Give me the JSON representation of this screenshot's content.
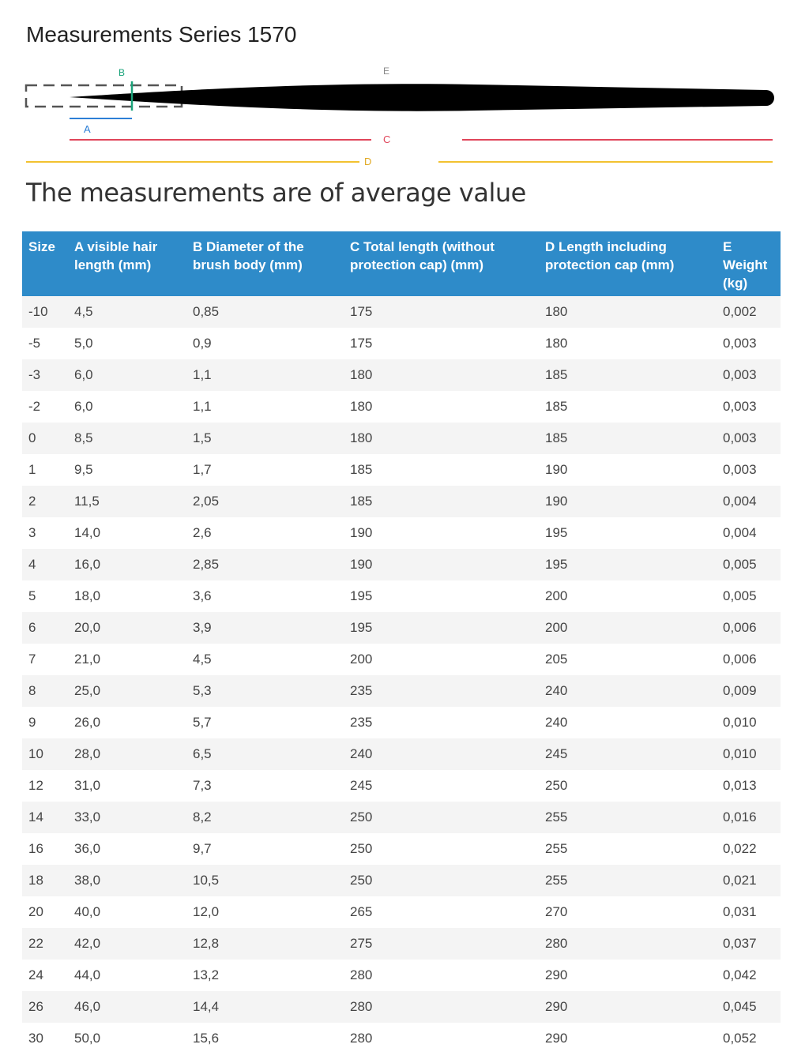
{
  "title": "Measurements Series 1570",
  "diagram": {
    "labels": [
      "A",
      "B",
      "C",
      "D",
      "E"
    ]
  },
  "subtitle": "The measurements are of average value",
  "table": {
    "headers": [
      "Size",
      "A visible hair length (mm)",
      "B Diameter of the brush body (mm)",
      "C Total length (without protection cap) (mm)",
      "D Length including protection cap (mm)",
      "E Weight (kg)"
    ],
    "rows": [
      [
        "-10",
        "4,5",
        "0,85",
        "175",
        "180",
        "0,002"
      ],
      [
        "-5",
        "5,0",
        "0,9",
        "175",
        "180",
        "0,003"
      ],
      [
        "-3",
        "6,0",
        "1,1",
        "180",
        "185",
        "0,003"
      ],
      [
        "-2",
        "6,0",
        "1,1",
        "180",
        "185",
        "0,003"
      ],
      [
        "0",
        "8,5",
        "1,5",
        "180",
        "185",
        "0,003"
      ],
      [
        "1",
        "9,5",
        "1,7",
        "185",
        "190",
        "0,003"
      ],
      [
        "2",
        "11,5",
        "2,05",
        "185",
        "190",
        "0,004"
      ],
      [
        "3",
        "14,0",
        "2,6",
        "190",
        "195",
        "0,004"
      ],
      [
        "4",
        "16,0",
        "2,85",
        "190",
        "195",
        "0,005"
      ],
      [
        "5",
        "18,0",
        "3,6",
        "195",
        "200",
        "0,005"
      ],
      [
        "6",
        "20,0",
        "3,9",
        "195",
        "200",
        "0,006"
      ],
      [
        "7",
        "21,0",
        "4,5",
        "200",
        "205",
        "0,006"
      ],
      [
        "8",
        "25,0",
        "5,3",
        "235",
        "240",
        "0,009"
      ],
      [
        "9",
        "26,0",
        "5,7",
        "235",
        "240",
        "0,010"
      ],
      [
        "10",
        "28,0",
        "6,5",
        "240",
        "245",
        "0,010"
      ],
      [
        "12",
        "31,0",
        "7,3",
        "245",
        "250",
        "0,013"
      ],
      [
        "14",
        "33,0",
        "8,2",
        "250",
        "255",
        "0,016"
      ],
      [
        "16",
        "36,0",
        "9,7",
        "250",
        "255",
        "0,022"
      ],
      [
        "18",
        "38,0",
        "10,5",
        "250",
        "255",
        "0,021"
      ],
      [
        "20",
        "40,0",
        "12,0",
        "265",
        "270",
        "0,031"
      ],
      [
        "22",
        "42,0",
        "12,8",
        "275",
        "280",
        "0,037"
      ],
      [
        "24",
        "44,0",
        "13,2",
        "280",
        "290",
        "0,042"
      ],
      [
        "26",
        "46,0",
        "14,4",
        "280",
        "290",
        "0,045"
      ],
      [
        "30",
        "50,0",
        "15,6",
        "280",
        "290",
        "0,052"
      ]
    ]
  }
}
